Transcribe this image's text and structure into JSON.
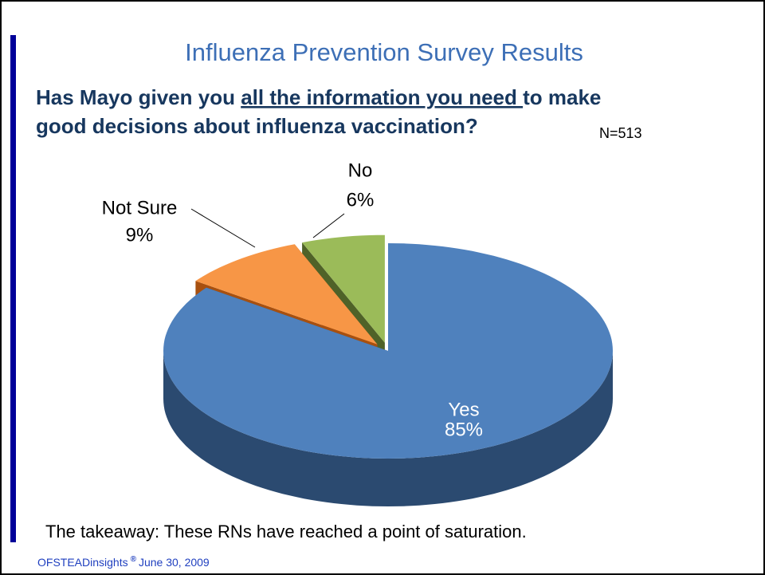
{
  "chart_data": {
    "type": "pie",
    "title": "Influenza Prevention Survey Results",
    "subtitle": {
      "line1_start": "Has Mayo given you ",
      "line1_underlined": "all the information you need ",
      "line1_end": "to make",
      "line2": "good decisions about influenza vaccination?"
    },
    "annotation": "N=513",
    "categories": [
      "Yes",
      "Not Sure",
      "No"
    ],
    "values": [
      85,
      9,
      6
    ],
    "value_labels": [
      "85%",
      "9%",
      "6%"
    ],
    "colors": [
      "#4f81bd",
      "#f79646",
      "#9bbb59"
    ],
    "side_colors": [
      "#2b4a70",
      "#a8500f",
      "#4f6228"
    ],
    "takeaway": "The takeaway: These RNs have reached a point of saturation.",
    "footer": {
      "brand": "OFSTEADinsights",
      "mark": "®",
      "date": "June 30, 2009"
    }
  }
}
